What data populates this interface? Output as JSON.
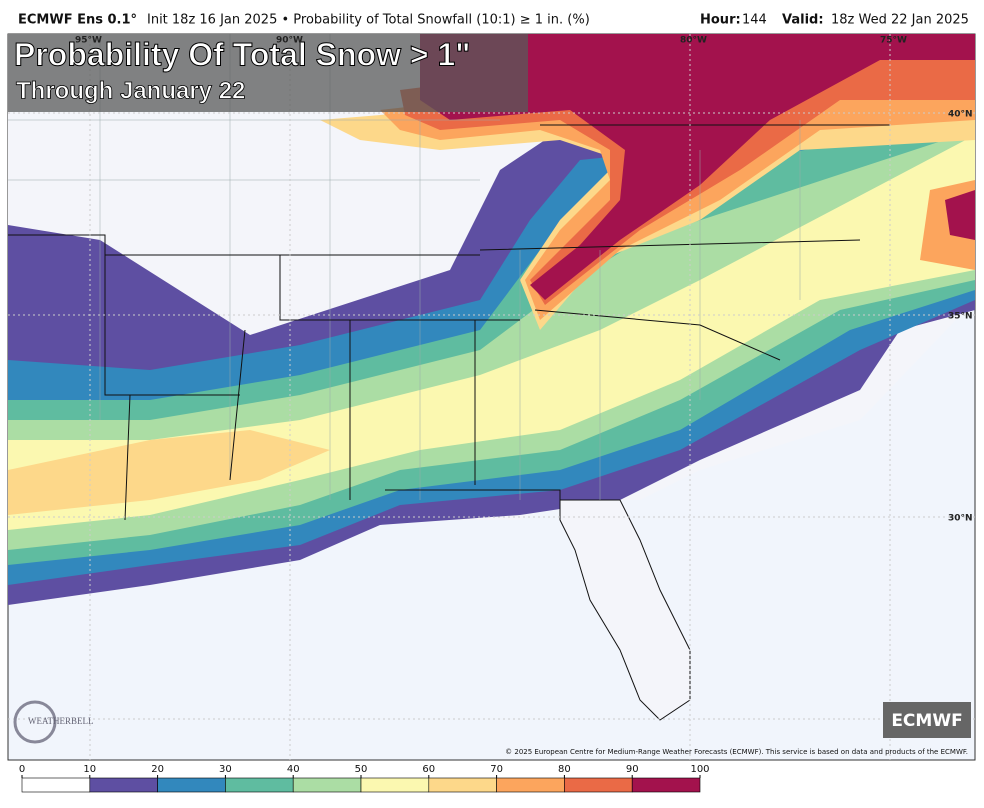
{
  "header": {
    "left_title": "ECMWF Ens 0.1°",
    "left_text": "Init 18z 16 Jan 2025 • Probability of Total Snowfall (10:1) ≥ 1 in. (%)",
    "hour_label": "Hour:",
    "hour": "144",
    "valid_label": "Valid:",
    "valid": "18z Wed 22 Jan 2025"
  },
  "map": {
    "title": "Probability Of Total Snow > 1\"",
    "subtitle": "Through January 22",
    "lat_labels": [
      "40°N",
      "35°N",
      "30°N"
    ],
    "lon_labels": [
      "95°W",
      "90°W",
      "80°W",
      "75°W"
    ],
    "logo": "WEATHERBELL",
    "badge": "ECMWF",
    "copyright": "© 2025 European Centre for Medium-Range Weather Forecasts (ECMWF). This service is based on data and products of the ECMWF."
  },
  "colorbar": {
    "ticks": [
      0,
      10,
      20,
      30,
      40,
      50,
      60,
      70,
      80,
      90,
      100
    ],
    "colors": [
      "#ffffff",
      "#5e4fa2",
      "#3288bd",
      "#5fbca0",
      "#abdda4",
      "#fbf8b0",
      "#fdd88a",
      "#fca55d",
      "#ea6a46",
      "#a3124d"
    ]
  }
}
